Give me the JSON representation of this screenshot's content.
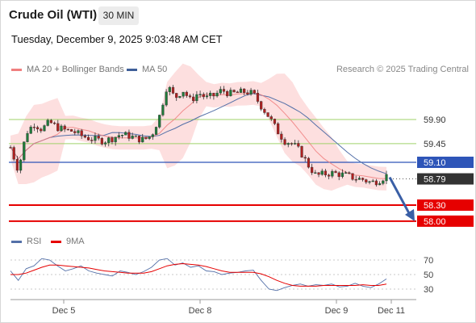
{
  "header": {
    "title": "Crude Oil (WTI)",
    "timeframe": "30 MIN",
    "datetime": "Tuesday, December 9, 2025 9:03:48 AM CET"
  },
  "legend": {
    "ma20_label": "MA 20 + Bollinger Bands",
    "ma50_label": "MA 50",
    "copyright": "Research © 2025 Trading Central",
    "rsi_label": "RSI",
    "ma9_label": "9MA"
  },
  "colors": {
    "ma20": "#f07f7f",
    "bollinger_fill": "#fddcdc",
    "ma50": "#5470a8",
    "candle_up": "#1f7a3a",
    "candle_down": "#b02020",
    "resistance": "#9fd26a",
    "pivot": "#2e55b8",
    "support": "#e60000",
    "price_badge": "#333333",
    "arrow": "#3a5fa6"
  },
  "chart_data": [
    {
      "type": "candlestick",
      "title": "Crude Oil (WTI) 30 MIN",
      "x_ticks": [
        "Dec 5",
        "Dec 8",
        "Dec 9",
        "Dec 11"
      ],
      "y_levels": [
        {
          "label": "59.90",
          "value": 59.9,
          "role": "resistance"
        },
        {
          "label": "59.45",
          "value": 59.45,
          "role": "resistance"
        },
        {
          "label": "59.10",
          "value": 59.1,
          "role": "pivot"
        },
        {
          "label": "58.79",
          "value": 58.79,
          "role": "last-price"
        },
        {
          "label": "58.30",
          "value": 58.3,
          "role": "support"
        },
        {
          "label": "58.00",
          "value": 58.0,
          "role": "support"
        }
      ],
      "ylim": [
        57.9,
        61.0
      ],
      "series": [
        {
          "name": "MA 20 + Bollinger Bands",
          "style": "line-with-band"
        },
        {
          "name": "MA 50",
          "style": "line"
        }
      ],
      "ohlc_path": [
        59.38,
        58.95,
        59.65,
        59.82,
        59.72,
        59.85,
        59.75,
        59.7,
        59.68,
        59.6,
        59.55,
        59.52,
        59.5,
        59.55,
        59.62,
        59.6,
        59.55,
        59.52,
        59.6,
        59.95,
        60.55,
        60.3,
        60.45,
        60.25,
        60.4,
        60.3,
        60.35,
        60.45,
        60.38,
        60.4,
        60.42,
        60.38,
        60.15,
        59.95,
        59.7,
        59.5,
        59.45,
        59.3,
        59.05,
        58.85,
        58.88,
        58.9,
        58.88,
        58.85,
        58.8,
        58.78,
        58.72,
        58.76,
        58.85
      ],
      "forecast_arrow": {
        "from": 58.85,
        "to": 58.0
      }
    },
    {
      "type": "line",
      "title": "RSI",
      "ylim": [
        20,
        80
      ],
      "y_ticks": [
        70,
        50,
        30
      ],
      "series": [
        {
          "name": "RSI",
          "values": [
            55,
            42,
            58,
            62,
            72,
            70,
            62,
            55,
            58,
            62,
            55,
            52,
            50,
            48,
            55,
            53,
            50,
            54,
            60,
            70,
            72,
            63,
            66,
            60,
            62,
            55,
            54,
            50,
            52,
            53,
            55,
            56,
            42,
            30,
            28,
            32,
            35,
            37,
            34,
            36,
            35,
            37,
            33,
            34,
            38,
            34,
            32,
            37,
            44
          ]
        },
        {
          "name": "9MA",
          "values": [
            50,
            50,
            52,
            56,
            60,
            63,
            63,
            62,
            61,
            60,
            59,
            57,
            55,
            54,
            53,
            52,
            52,
            52,
            54,
            58,
            62,
            64,
            65,
            64,
            63,
            61,
            58,
            55,
            53,
            53,
            53,
            53,
            51,
            47,
            42,
            38,
            35,
            34,
            34,
            34,
            35,
            35,
            35,
            35,
            35,
            36,
            35,
            35,
            37
          ]
        }
      ]
    }
  ]
}
